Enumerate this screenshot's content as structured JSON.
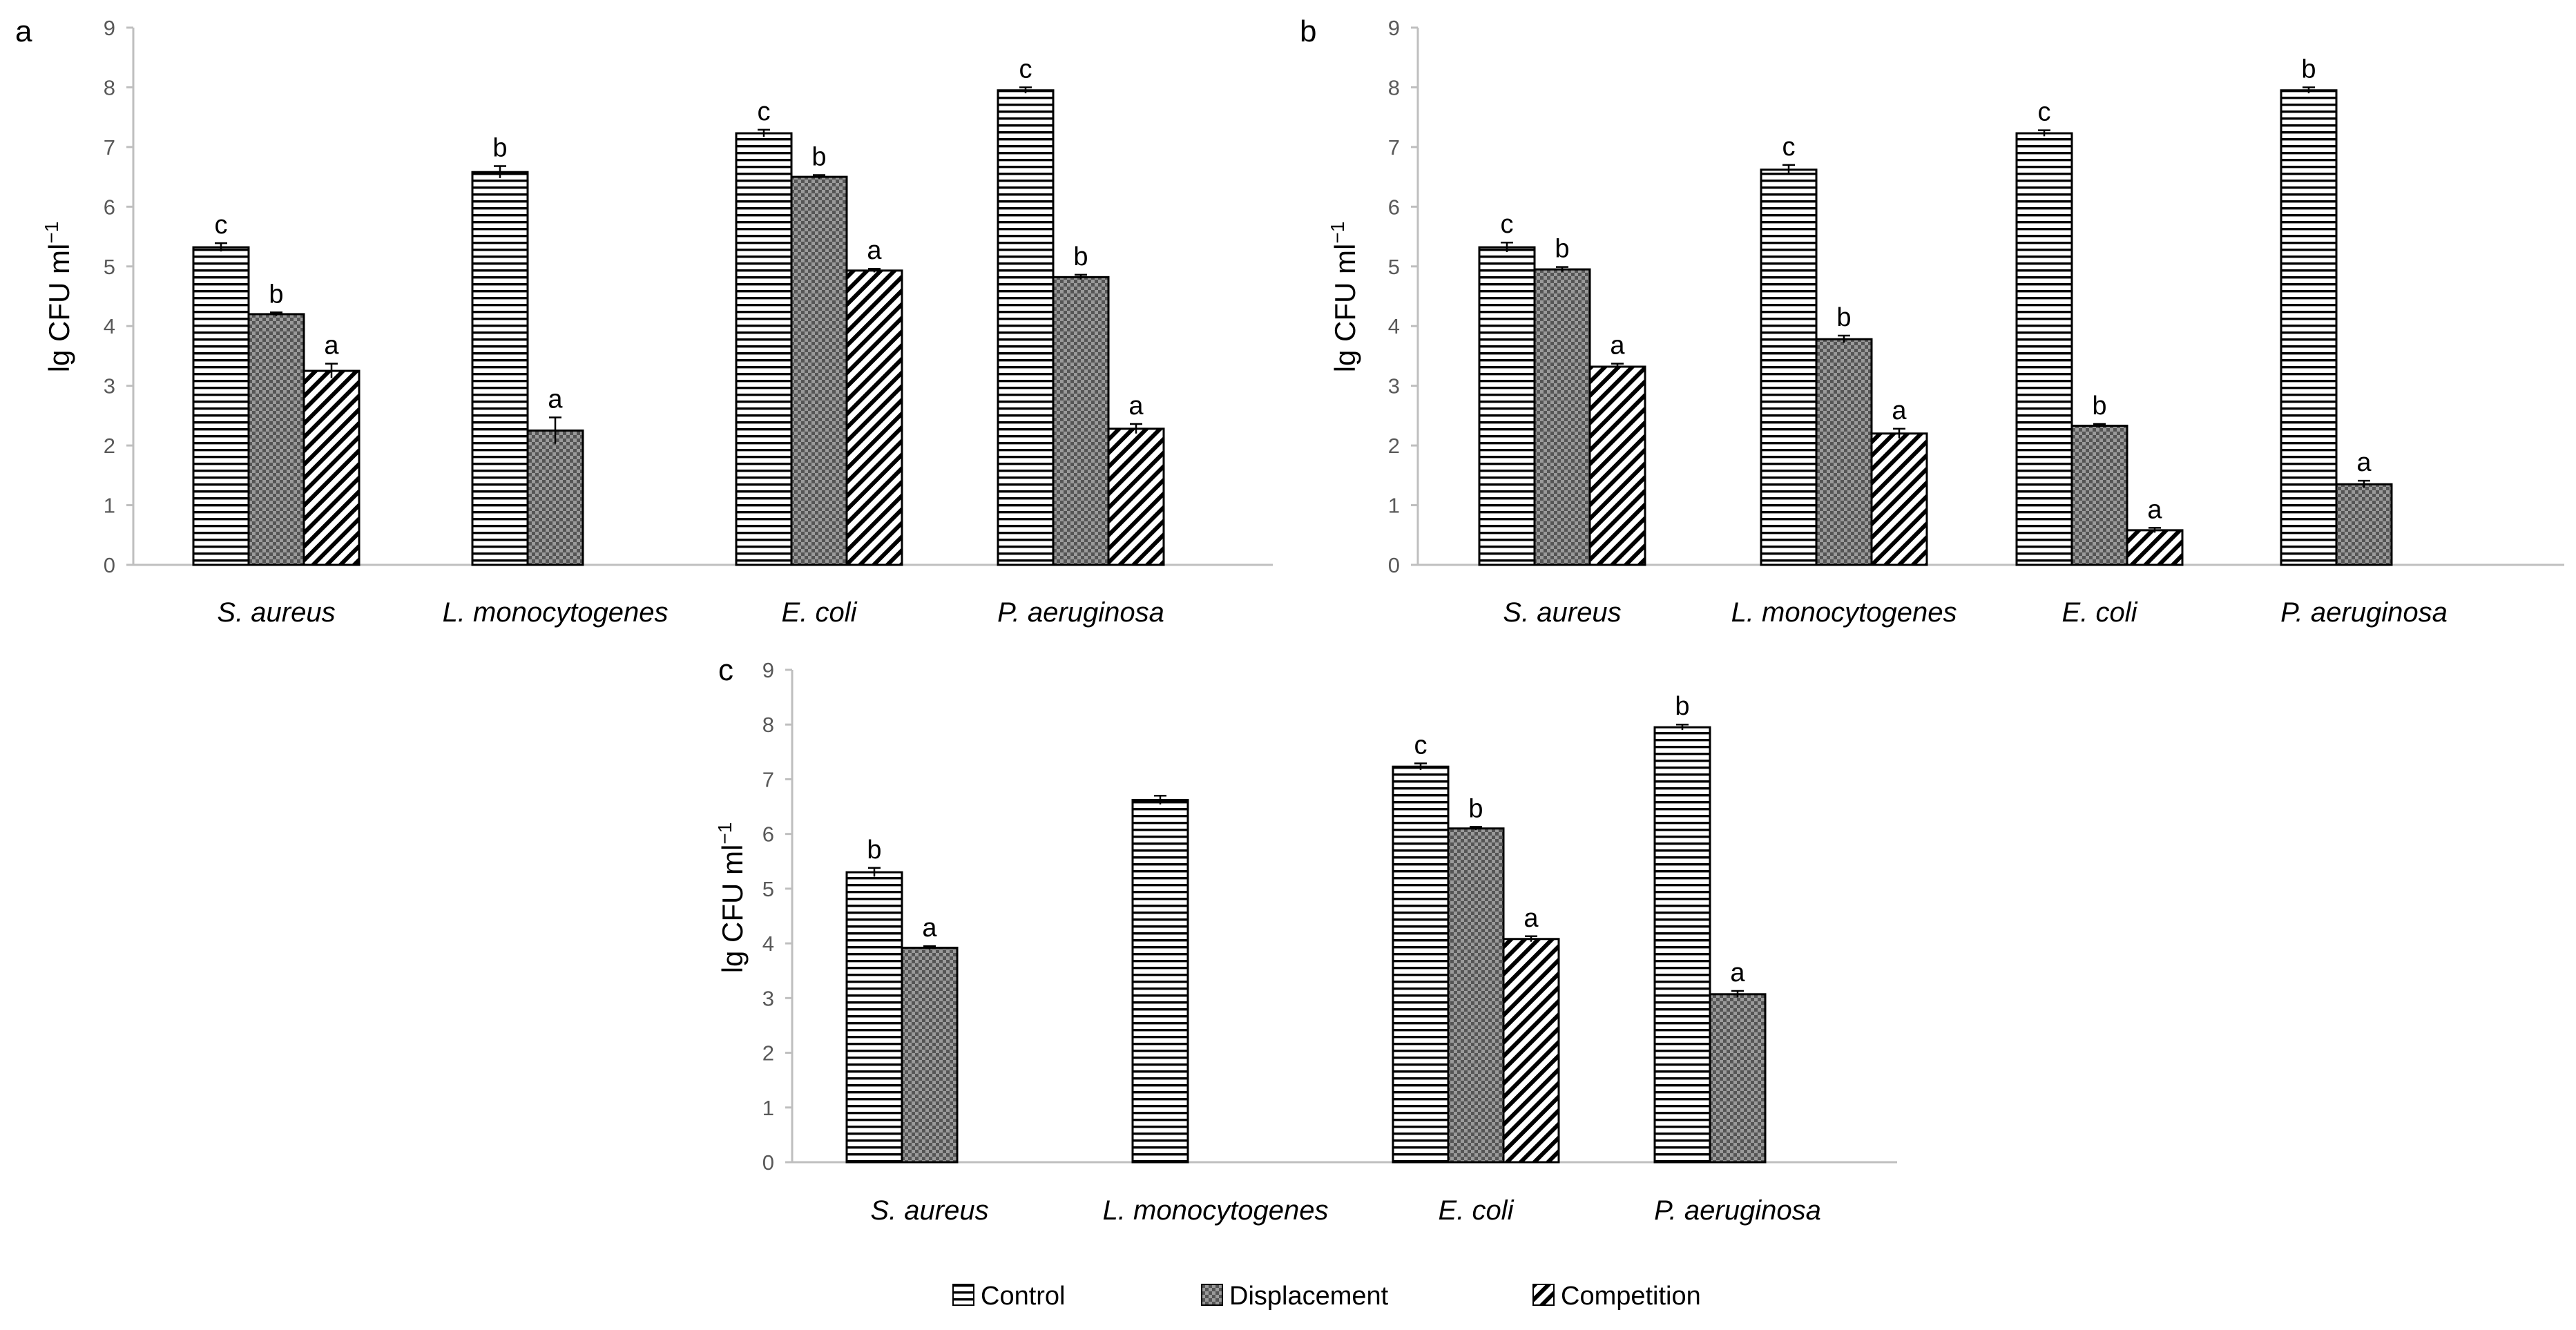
{
  "chart_data": [
    {
      "type": "bar",
      "panel_label": "a",
      "ylabel": "lg CFU ml",
      "ylabel_sup": "−1",
      "ylim": [
        0,
        9
      ],
      "yticks": [
        0,
        1,
        2,
        3,
        4,
        5,
        6,
        7,
        8,
        9
      ],
      "categories": [
        "S. aureus",
        "L. monocytogenes",
        "E. coli",
        "P. aeruginosa"
      ],
      "series": [
        {
          "name": "Control",
          "values": [
            5.32,
            6.58,
            7.23,
            7.95
          ],
          "errors": [
            0.07,
            0.1,
            0.06,
            0.05
          ],
          "labels": [
            "c",
            "b",
            "c",
            "c"
          ]
        },
        {
          "name": "Displacement",
          "values": [
            4.2,
            2.25,
            6.5,
            4.82
          ],
          "errors": [
            0.03,
            0.22,
            0.03,
            0.04
          ],
          "labels": [
            "b",
            "a",
            "b",
            "b"
          ]
        },
        {
          "name": "Competition",
          "values": [
            3.25,
            null,
            4.93,
            2.28
          ],
          "errors": [
            0.12,
            null,
            0.03,
            0.08
          ],
          "labels": [
            "a",
            null,
            "a",
            "a"
          ]
        }
      ]
    },
    {
      "type": "bar",
      "panel_label": "b",
      "ylabel": "lg CFU ml",
      "ylabel_sup": "−1",
      "ylim": [
        0,
        9
      ],
      "yticks": [
        0,
        1,
        2,
        3,
        4,
        5,
        6,
        7,
        8,
        9
      ],
      "categories": [
        "S. aureus",
        "L. monocytogenes",
        "E. coli",
        "P. aeruginosa"
      ],
      "series": [
        {
          "name": "Control",
          "values": [
            5.32,
            6.62,
            7.23,
            7.95
          ],
          "errors": [
            0.08,
            0.08,
            0.05,
            0.05
          ],
          "labels": [
            "c",
            "c",
            "c",
            "b"
          ]
        },
        {
          "name": "Displacement",
          "values": [
            4.95,
            3.78,
            2.33,
            1.35
          ],
          "errors": [
            0.04,
            0.06,
            0.03,
            0.06
          ],
          "labels": [
            "b",
            "b",
            "b",
            "a"
          ]
        },
        {
          "name": "Competition",
          "values": [
            3.32,
            2.2,
            0.58,
            null
          ],
          "errors": [
            0.05,
            0.08,
            0.04,
            null
          ],
          "labels": [
            "a",
            "a",
            "a",
            null
          ]
        }
      ]
    },
    {
      "type": "bar",
      "panel_label": "c",
      "ylabel": "lg CFU ml",
      "ylabel_sup": "−1",
      "ylim": [
        0,
        9
      ],
      "yticks": [
        0,
        1,
        2,
        3,
        4,
        5,
        6,
        7,
        8,
        9
      ],
      "categories": [
        "S. aureus",
        "L. monocytogenes",
        "E. coli",
        "P. aeruginosa"
      ],
      "series": [
        {
          "name": "Control",
          "values": [
            5.3,
            6.62,
            7.23,
            7.95
          ],
          "errors": [
            0.08,
            0.08,
            0.06,
            0.05
          ],
          "labels": [
            "b",
            null,
            "c",
            "b"
          ]
        },
        {
          "name": "Displacement",
          "values": [
            3.92,
            null,
            6.1,
            3.07
          ],
          "errors": [
            0.03,
            null,
            0.03,
            0.06
          ],
          "labels": [
            "a",
            null,
            "b",
            "a"
          ]
        },
        {
          "name": "Competition",
          "values": [
            null,
            null,
            4.08,
            null
          ],
          "errors": [
            null,
            null,
            0.05,
            null
          ],
          "labels": [
            null,
            null,
            "a",
            null
          ]
        }
      ]
    }
  ],
  "legend": {
    "items": [
      {
        "label": "Control",
        "pattern": "horizontal-stripes"
      },
      {
        "label": "Displacement",
        "pattern": "checker-grey"
      },
      {
        "label": "Competition",
        "pattern": "diagonal-hatch"
      }
    ]
  },
  "colors": {
    "axis": "#bfbfbf",
    "tick_text": "#595959",
    "bar_outline": "#000000",
    "displacement_dark": "#555555",
    "displacement_light": "#9a9a9a"
  }
}
